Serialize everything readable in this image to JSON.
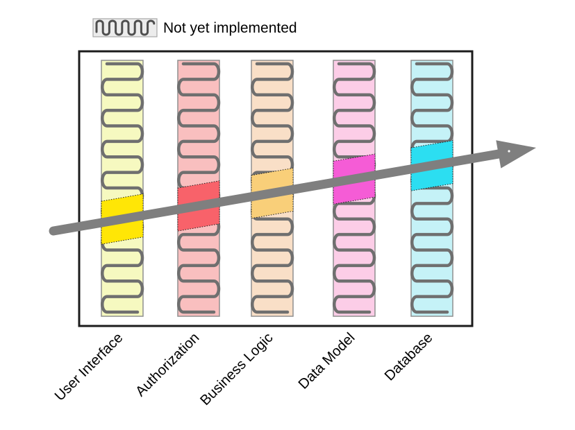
{
  "legend": {
    "label": "Not yet implemented",
    "box_fill": "#ececec",
    "box_border": "#a8a8a8",
    "squiggle_color": "#4f4f4f",
    "text_color": "#000000"
  },
  "diagram": {
    "colors": {
      "frame": "#1b1b1b",
      "frame_fill": "#ffffff",
      "arrow": "#7f7f7f",
      "squiggle": "#6f6f6f",
      "column_border": "#8f8f8f",
      "highlight_border": "#222222",
      "label_color": "#000000"
    },
    "columns": [
      {
        "label": "User Interface",
        "base_color": "#f6f9c0",
        "done_color": "#ffe606"
      },
      {
        "label": "Authorization",
        "base_color": "#f9bfbf",
        "done_color": "#f8626a"
      },
      {
        "label": "Business Logic",
        "base_color": "#f9dfc7",
        "done_color": "#f9cf79"
      },
      {
        "label": "Data Model",
        "base_color": "#fccde7",
        "done_color": "#f55cd6"
      },
      {
        "label": "Database",
        "base_color": "#c5f2f7",
        "done_color": "#2cdef1"
      }
    ]
  }
}
